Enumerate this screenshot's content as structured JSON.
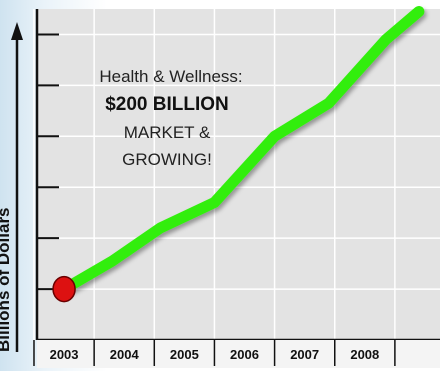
{
  "chart_data": {
    "type": "line",
    "title": "",
    "xlabel": "",
    "ylabel": "Billions of Dollars",
    "categories": [
      "2003",
      "2004",
      "2005",
      "2006",
      "2007",
      "2008"
    ],
    "series": [
      {
        "values": [
          {
            "x": 2003.0,
            "y": 1.0
          },
          {
            "x": 2003.8,
            "y": 1.55
          },
          {
            "x": 2004.6,
            "y": 2.2
          },
          {
            "x": 2005.5,
            "y": 2.7
          },
          {
            "x": 2006.5,
            "y": 4.0
          },
          {
            "x": 2007.4,
            "y": 4.65
          },
          {
            "x": 2008.35,
            "y": 5.9
          },
          {
            "x": 2008.9,
            "y": 6.45
          }
        ]
      }
    ],
    "highlight_point": {
      "x": 2003.0,
      "y": 1.0
    },
    "xlim": [
      2002.55,
      2009.25
    ],
    "ylim": [
      0.0,
      6.5
    ],
    "annotation": [
      "Health & Wellness:",
      "$200 BILLION",
      "MARKET &",
      "GROWING!"
    ],
    "grid": true,
    "legend": "none",
    "colors": {
      "line": "#33ee11",
      "point": "#dd1111",
      "plot_bg": "#e3e3e3",
      "grid": "#ffffff",
      "axis": "#111111"
    }
  }
}
